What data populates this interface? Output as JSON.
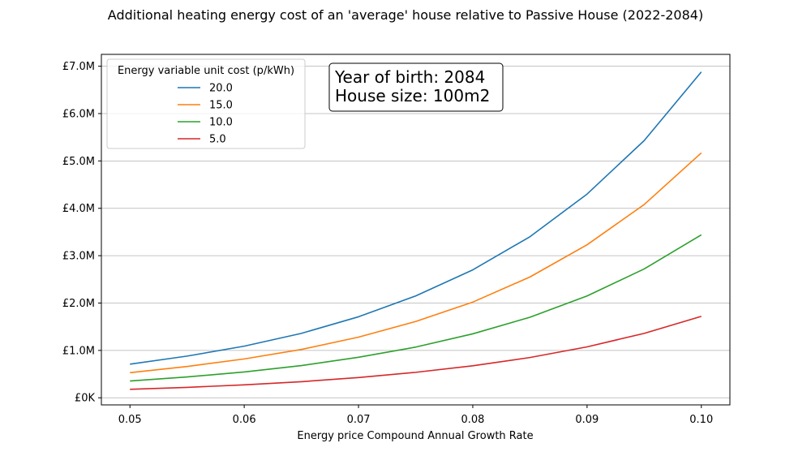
{
  "chart_data": {
    "type": "line",
    "title": "Additional heating energy cost of an 'average' house relative to Passive House (2022-2084)",
    "xlabel": "Energy price Compound Annual Growth Rate",
    "ylabel": "",
    "x": [
      0.05,
      0.055,
      0.06,
      0.065,
      0.07,
      0.075,
      0.08,
      0.085,
      0.09,
      0.095,
      0.1
    ],
    "xticks": [
      0.05,
      0.06,
      0.07,
      0.08,
      0.09,
      0.1
    ],
    "xtick_labels": [
      "0.05",
      "0.06",
      "0.07",
      "0.08",
      "0.09",
      "0.10"
    ],
    "yticks": [
      0,
      1000000,
      2000000,
      3000000,
      4000000,
      5000000,
      6000000,
      7000000
    ],
    "ytick_labels": [
      "£0K",
      "£1.0M",
      "£2.0M",
      "£3.0M",
      "£4.0M",
      "£5.0M",
      "£6.0M",
      "£7.0M"
    ],
    "xlim": [
      0.0475,
      0.1025
    ],
    "ylim": [
      -150000,
      7250000
    ],
    "grid": "horizontal",
    "legend": {
      "title": "Energy variable unit cost (p/kWh)",
      "placement": "top-left"
    },
    "series": [
      {
        "name": "20.0",
        "color": "#1f77b4",
        "values": [
          710000,
          880000,
          1090000,
          1360000,
          1710000,
          2150000,
          2700000,
          3400000,
          4300000,
          5430000,
          6880000
        ]
      },
      {
        "name": "15.0",
        "color": "#ff7f0e",
        "values": [
          530000,
          660000,
          820000,
          1020000,
          1280000,
          1610000,
          2020000,
          2550000,
          3230000,
          4080000,
          5170000
        ]
      },
      {
        "name": "10.0",
        "color": "#2ca02c",
        "values": [
          355000,
          440000,
          545000,
          680000,
          855000,
          1070000,
          1350000,
          1700000,
          2150000,
          2720000,
          3440000
        ]
      },
      {
        "name": "5.0",
        "color": "#d62728",
        "values": [
          178000,
          220000,
          273000,
          340000,
          427000,
          537000,
          675000,
          850000,
          1075000,
          1360000,
          1720000
        ]
      }
    ],
    "annotation": {
      "lines": [
        "Year of birth: 2084",
        "House size: 100m2"
      ],
      "placement": "top-center"
    }
  }
}
